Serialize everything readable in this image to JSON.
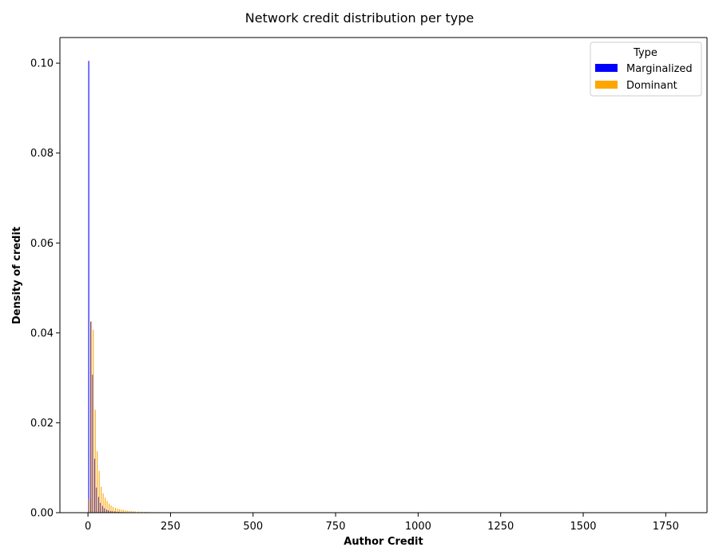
{
  "chart_data": {
    "type": "bar",
    "title": "Network credit distribution per type",
    "xlabel": "Author Credit",
    "ylabel": "Density of credit",
    "xlim": [
      -85,
      1875
    ],
    "ylim": [
      0,
      0.1057
    ],
    "xticks": [
      0,
      250,
      500,
      750,
      1000,
      1250,
      1500,
      1750
    ],
    "yticks": [
      0.0,
      0.02,
      0.04,
      0.06,
      0.08,
      0.1
    ],
    "xtick_labels": [
      "0",
      "250",
      "500",
      "750",
      "1000",
      "1250",
      "1500",
      "1750"
    ],
    "ytick_labels": [
      "0.00",
      "0.02",
      "0.04",
      "0.06",
      "0.08",
      "0.10"
    ],
    "bin_width": 6.4,
    "legend": {
      "title": "Type",
      "position": "upper right"
    },
    "series": [
      {
        "name": "Marginalized",
        "color": "#0000ff",
        "values": [
          [
            1,
            0.1005
          ],
          [
            7,
            0.0425
          ],
          [
            13,
            0.0307
          ],
          [
            19,
            0.012
          ],
          [
            25,
            0.0056
          ],
          [
            31,
            0.0035
          ],
          [
            37,
            0.0022
          ],
          [
            43,
            0.0015
          ],
          [
            49,
            0.001
          ],
          [
            55,
            0.0007
          ],
          [
            61,
            0.0005
          ],
          [
            67,
            0.0004
          ],
          [
            73,
            0.0003
          ],
          [
            80,
            0.0003
          ],
          [
            86,
            0.0002
          ],
          [
            92,
            0.0002
          ],
          [
            98,
            0.00015
          ],
          [
            104,
            0.00012
          ],
          [
            110,
            0.0001
          ],
          [
            116,
            0.0001
          ],
          [
            122,
            8e-05
          ],
          [
            128,
            7e-05
          ],
          [
            134,
            6e-05
          ],
          [
            140,
            5e-05
          ]
        ]
      },
      {
        "name": "Dominant",
        "color": "#ffa500",
        "values": [
          [
            1,
            0.003
          ],
          [
            7,
            0.0425
          ],
          [
            13,
            0.0407
          ],
          [
            19,
            0.0229
          ],
          [
            25,
            0.0137
          ],
          [
            31,
            0.0093
          ],
          [
            37,
            0.0058
          ],
          [
            43,
            0.0043
          ],
          [
            49,
            0.0033
          ],
          [
            55,
            0.0026
          ],
          [
            61,
            0.002
          ],
          [
            67,
            0.0016
          ],
          [
            73,
            0.0013
          ],
          [
            80,
            0.0011
          ],
          [
            86,
            0.0009
          ],
          [
            92,
            0.0008
          ],
          [
            98,
            0.0007
          ],
          [
            104,
            0.0006
          ],
          [
            110,
            0.0005
          ],
          [
            116,
            0.00045
          ],
          [
            122,
            0.0004
          ],
          [
            128,
            0.00035
          ],
          [
            134,
            0.0003
          ],
          [
            140,
            0.00027
          ],
          [
            150,
            0.00024
          ],
          [
            160,
            0.0002
          ],
          [
            170,
            0.00018
          ],
          [
            180,
            0.00015
          ],
          [
            190,
            0.00013
          ],
          [
            200,
            0.00011
          ],
          [
            210,
            0.0001
          ],
          [
            220,
            9e-05
          ],
          [
            230,
            8e-05
          ],
          [
            240,
            7e-05
          ],
          [
            250,
            6e-05
          ],
          [
            270,
            4e-05
          ],
          [
            290,
            3e-05
          ],
          [
            320,
            2e-05
          ]
        ]
      }
    ]
  }
}
